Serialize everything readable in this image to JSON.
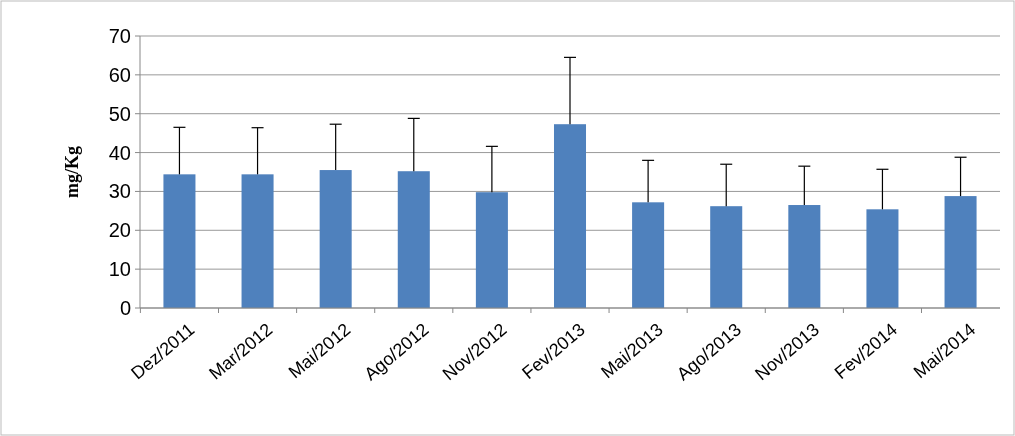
{
  "chart_data": {
    "type": "bar",
    "ylabel": "mg/Kg",
    "categories": [
      "Dez/2011",
      "Mar/2012",
      "Mai/2012",
      "Ago/2012",
      "Nov/2012",
      "Fev/2013",
      "Mai/2013",
      "Ago/2013",
      "Nov/2013",
      "Fev/2014",
      "Mai/2014"
    ],
    "series": [
      {
        "color": "#4f81bd",
        "values": [
          34.4,
          34.4,
          35.5,
          35.2,
          29.8,
          47.3,
          27.2,
          26.2,
          26.5,
          25.4,
          28.8
        ],
        "errors": [
          [
            34.4,
            46.5
          ],
          [
            34.4,
            46.4
          ],
          [
            35.5,
            47.3
          ],
          [
            35.2,
            48.8
          ],
          [
            29.8,
            41.6
          ],
          [
            47.3,
            64.5
          ],
          [
            27.2,
            38
          ],
          [
            26.2,
            37
          ],
          [
            26.5,
            36.5
          ],
          [
            25.4,
            35.7
          ],
          [
            28.8,
            38.8
          ]
        ]
      }
    ],
    "ylim": [
      0,
      70
    ],
    "yticks": [
      0,
      10,
      20,
      30,
      40,
      50,
      60,
      70
    ],
    "grid": "y"
  }
}
